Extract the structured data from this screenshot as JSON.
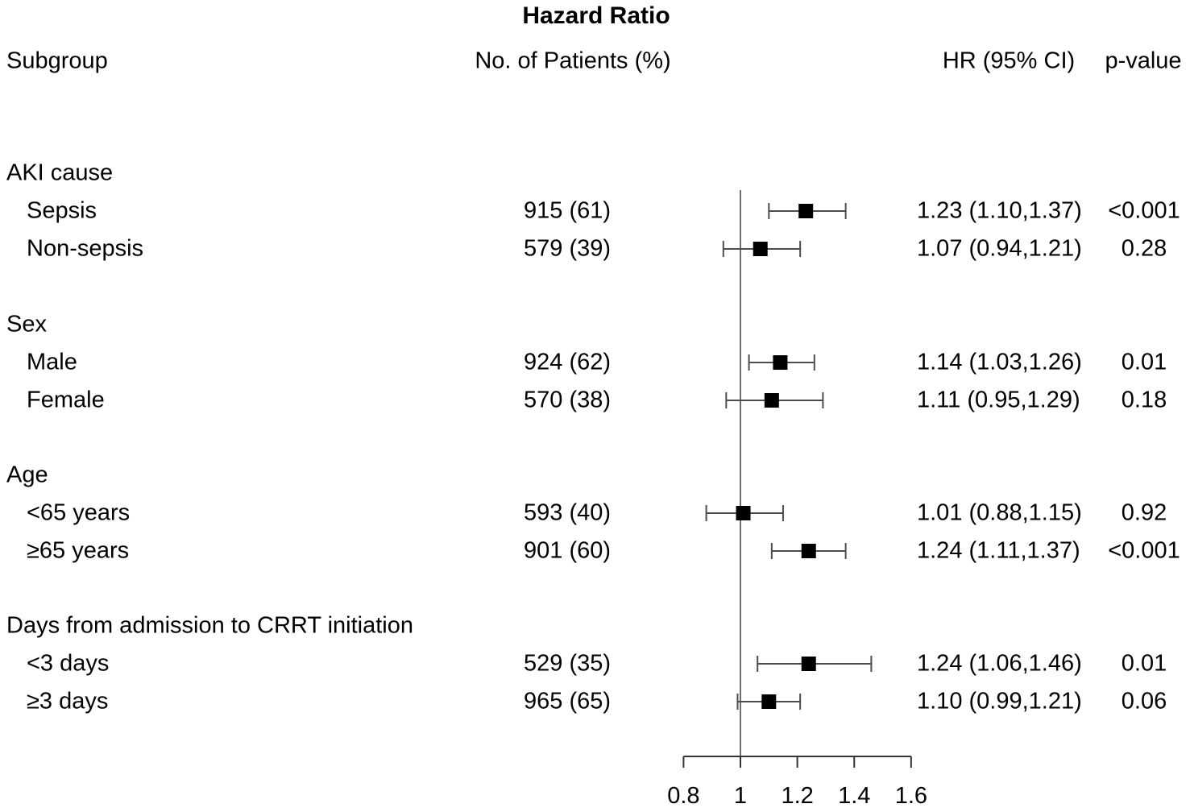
{
  "title": "Hazard Ratio",
  "columns": {
    "subgroup": "Subgroup",
    "patients": "No. of Patients (%)",
    "hr": "HR (95% CI)",
    "pvalue": "p-value"
  },
  "chart_data": {
    "type": "forest",
    "title": "Hazard Ratio",
    "xlabel": "",
    "x_ticks": [
      0.8,
      1,
      1.2,
      1.4,
      1.6
    ],
    "x_tick_labels": [
      "0.8",
      "1",
      "1.2",
      "1.4",
      "1.6"
    ],
    "xlim": [
      0.8,
      1.6
    ],
    "reference_line": 1,
    "grid": false,
    "groups": [
      {
        "label": "AKI cause",
        "rows": [
          {
            "label": "Sepsis",
            "patients": "915 (61)",
            "hr": 1.23,
            "ci_low": 1.1,
            "ci_high": 1.37,
            "hr_ci_text": "1.23 (1.10,1.37)",
            "p_value": "<0.001"
          },
          {
            "label": "Non-sepsis",
            "patients": "579 (39)",
            "hr": 1.07,
            "ci_low": 0.94,
            "ci_high": 1.21,
            "hr_ci_text": "1.07 (0.94,1.21)",
            "p_value": "0.28"
          }
        ]
      },
      {
        "label": "Sex",
        "rows": [
          {
            "label": "Male",
            "patients": "924 (62)",
            "hr": 1.14,
            "ci_low": 1.03,
            "ci_high": 1.26,
            "hr_ci_text": "1.14 (1.03,1.26)",
            "p_value": "0.01"
          },
          {
            "label": "Female",
            "patients": "570 (38)",
            "hr": 1.11,
            "ci_low": 0.95,
            "ci_high": 1.29,
            "hr_ci_text": "1.11 (0.95,1.29)",
            "p_value": "0.18"
          }
        ]
      },
      {
        "label": "Age",
        "rows": [
          {
            "label": "<65 years",
            "patients": "593 (40)",
            "hr": 1.01,
            "ci_low": 0.88,
            "ci_high": 1.15,
            "hr_ci_text": "1.01 (0.88,1.15)",
            "p_value": "0.92"
          },
          {
            "label": "≥65 years",
            "patients": "901 (60)",
            "hr": 1.24,
            "ci_low": 1.11,
            "ci_high": 1.37,
            "hr_ci_text": "1.24 (1.11,1.37)",
            "p_value": "<0.001"
          }
        ]
      },
      {
        "label": "Days from admission to CRRT initiation",
        "rows": [
          {
            "label": "<3 days",
            "patients": "529 (35)",
            "hr": 1.24,
            "ci_low": 1.06,
            "ci_high": 1.46,
            "hr_ci_text": "1.24 (1.06,1.46)",
            "p_value": "0.01"
          },
          {
            "label": "≥3 days",
            "patients": "965 (65)",
            "hr": 1.1,
            "ci_low": 0.99,
            "ci_high": 1.21,
            "hr_ci_text": "1.10 (0.99,1.21)",
            "p_value": "0.06"
          }
        ]
      }
    ],
    "colors": {
      "marker": "#000000",
      "error_bar": "#4d4d4d",
      "reference_line": "#6e6e6e",
      "axis": "#333333",
      "text": "#000000"
    }
  }
}
